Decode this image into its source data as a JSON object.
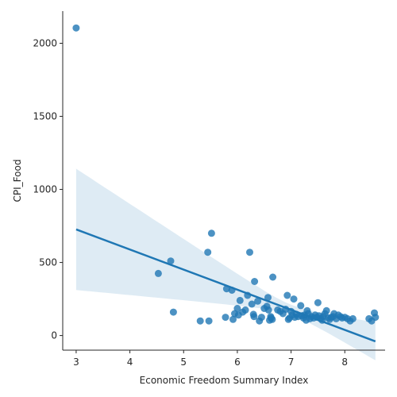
{
  "chart_data": {
    "type": "scatter",
    "xlabel": "Economic Freedom Summary Index",
    "ylabel": "CPI_Food",
    "xlim": [
      2.75,
      8.75
    ],
    "ylim": [
      -100,
      2220
    ],
    "xticks": [
      3,
      4,
      5,
      6,
      7,
      8
    ],
    "yticks": [
      0,
      500,
      1000,
      1500,
      2000
    ],
    "grid": false,
    "legend": "none",
    "point_color": "#1f77b4",
    "points": [
      [
        3.0,
        2105
      ],
      [
        4.53,
        425
      ],
      [
        4.76,
        510
      ],
      [
        4.81,
        160
      ],
      [
        5.31,
        100
      ],
      [
        5.47,
        100
      ],
      [
        5.45,
        570
      ],
      [
        5.52,
        700
      ],
      [
        5.78,
        125
      ],
      [
        5.8,
        320
      ],
      [
        5.9,
        310
      ],
      [
        5.92,
        110
      ],
      [
        5.95,
        150
      ],
      [
        6.0,
        185
      ],
      [
        6.02,
        140
      ],
      [
        6.05,
        240
      ],
      [
        6.1,
        160
      ],
      [
        6.15,
        175
      ],
      [
        6.19,
        275
      ],
      [
        6.23,
        570
      ],
      [
        6.27,
        215
      ],
      [
        6.3,
        145
      ],
      [
        6.31,
        130
      ],
      [
        6.32,
        370
      ],
      [
        6.38,
        235
      ],
      [
        6.41,
        100
      ],
      [
        6.45,
        125
      ],
      [
        6.5,
        185
      ],
      [
        6.55,
        200
      ],
      [
        6.57,
        260
      ],
      [
        6.58,
        175
      ],
      [
        6.6,
        105
      ],
      [
        6.62,
        130
      ],
      [
        6.63,
        120
      ],
      [
        6.65,
        110
      ],
      [
        6.66,
        400
      ],
      [
        6.75,
        175
      ],
      [
        6.8,
        165
      ],
      [
        6.85,
        150
      ],
      [
        6.9,
        180
      ],
      [
        6.93,
        275
      ],
      [
        6.95,
        110
      ],
      [
        6.97,
        120
      ],
      [
        7.0,
        165
      ],
      [
        7.02,
        140
      ],
      [
        7.05,
        250
      ],
      [
        7.07,
        125
      ],
      [
        7.1,
        145
      ],
      [
        7.13,
        130
      ],
      [
        7.18,
        205
      ],
      [
        7.2,
        135
      ],
      [
        7.23,
        120
      ],
      [
        7.25,
        140
      ],
      [
        7.28,
        105
      ],
      [
        7.3,
        170
      ],
      [
        7.32,
        150
      ],
      [
        7.35,
        115
      ],
      [
        7.38,
        130
      ],
      [
        7.42,
        120
      ],
      [
        7.45,
        140
      ],
      [
        7.48,
        125
      ],
      [
        7.5,
        225
      ],
      [
        7.52,
        135
      ],
      [
        7.55,
        115
      ],
      [
        7.58,
        105
      ],
      [
        7.6,
        130
      ],
      [
        7.63,
        150
      ],
      [
        7.66,
        170
      ],
      [
        7.69,
        120
      ],
      [
        7.72,
        110
      ],
      [
        7.75,
        125
      ],
      [
        7.78,
        130
      ],
      [
        7.8,
        150
      ],
      [
        7.84,
        115
      ],
      [
        7.88,
        140
      ],
      [
        7.92,
        130
      ],
      [
        7.95,
        120
      ],
      [
        8.0,
        125
      ],
      [
        8.05,
        115
      ],
      [
        8.1,
        100
      ],
      [
        8.15,
        115
      ],
      [
        8.45,
        115
      ],
      [
        8.5,
        100
      ],
      [
        8.55,
        155
      ],
      [
        8.57,
        125
      ]
    ],
    "regression": {
      "slope": -137.56,
      "intercept": 1139.1,
      "x_range": [
        3.0,
        8.57
      ]
    },
    "ci_band": {
      "x": [
        3.0,
        8.57
      ],
      "lower": [
        330,
        -180
      ],
      "upper": [
        1160,
        80
      ]
    }
  }
}
